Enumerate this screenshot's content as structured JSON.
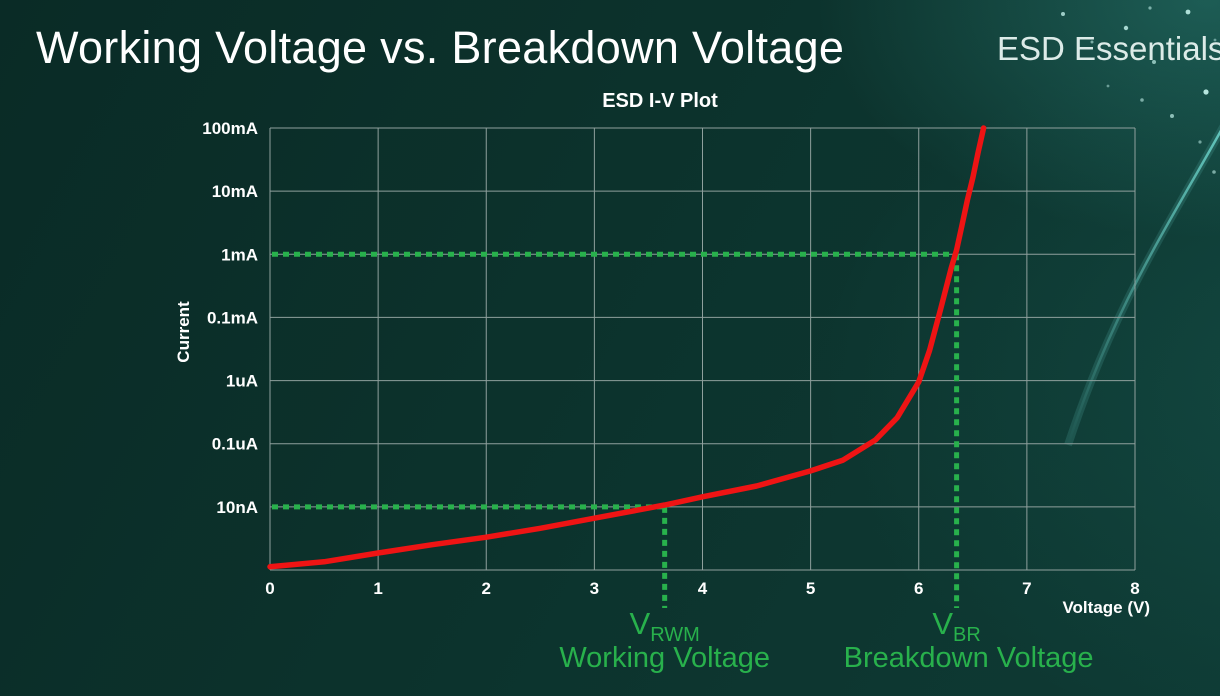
{
  "slide": {
    "title": "Working Voltage vs. Breakdown Voltage",
    "brand": "ESD Essentials"
  },
  "chart_data": {
    "type": "line",
    "title": "ESD I-V Plot",
    "xlabel": "Voltage (V)",
    "ylabel": "Current",
    "x_ticks": [
      0,
      1,
      2,
      3,
      4,
      5,
      6,
      7,
      8
    ],
    "xlim": [
      0,
      8
    ],
    "y_scale": "log",
    "y_tick_labels_top_to_bottom": [
      "100mA",
      "10mA",
      "1mA",
      "0.1mA",
      "1uA",
      "0.1uA",
      "10nA"
    ],
    "grid": true,
    "colors": {
      "annotation": "#28b14c",
      "grid": "#8fa09d",
      "tick_text": "#ffffff"
    },
    "series": [
      {
        "name": "ESD I-V curve",
        "color": "#ee1414",
        "points_voltage_vs_decades_above_bottom": [
          [
            0,
            0.05
          ],
          [
            0.5,
            0.13
          ],
          [
            1,
            0.27
          ],
          [
            1.5,
            0.4
          ],
          [
            2,
            0.52
          ],
          [
            2.5,
            0.66
          ],
          [
            3,
            0.82
          ],
          [
            3.5,
            0.98
          ],
          [
            3.65,
            1.03
          ],
          [
            4,
            1.16
          ],
          [
            4.5,
            1.33
          ],
          [
            5,
            1.57
          ],
          [
            5.3,
            1.74
          ],
          [
            5.6,
            2.06
          ],
          [
            5.8,
            2.41
          ],
          [
            6,
            2.98
          ],
          [
            6.1,
            3.48
          ],
          [
            6.2,
            4.12
          ],
          [
            6.3,
            4.78
          ],
          [
            6.35,
            5.07
          ],
          [
            6.4,
            5.46
          ],
          [
            6.45,
            5.86
          ],
          [
            6.5,
            6.21
          ],
          [
            6.55,
            6.62
          ],
          [
            6.6,
            7
          ]
        ]
      }
    ],
    "annotations": [
      {
        "symbol": "V",
        "subscript": "RWM",
        "label": "Working Voltage",
        "voltage": 3.65,
        "current": "10nA",
        "decades_above_bottom": 1
      },
      {
        "symbol": "V",
        "subscript": "BR",
        "label": "Breakdown Voltage",
        "voltage": 6.35,
        "current": "1mA",
        "decades_above_bottom": 5
      }
    ]
  }
}
